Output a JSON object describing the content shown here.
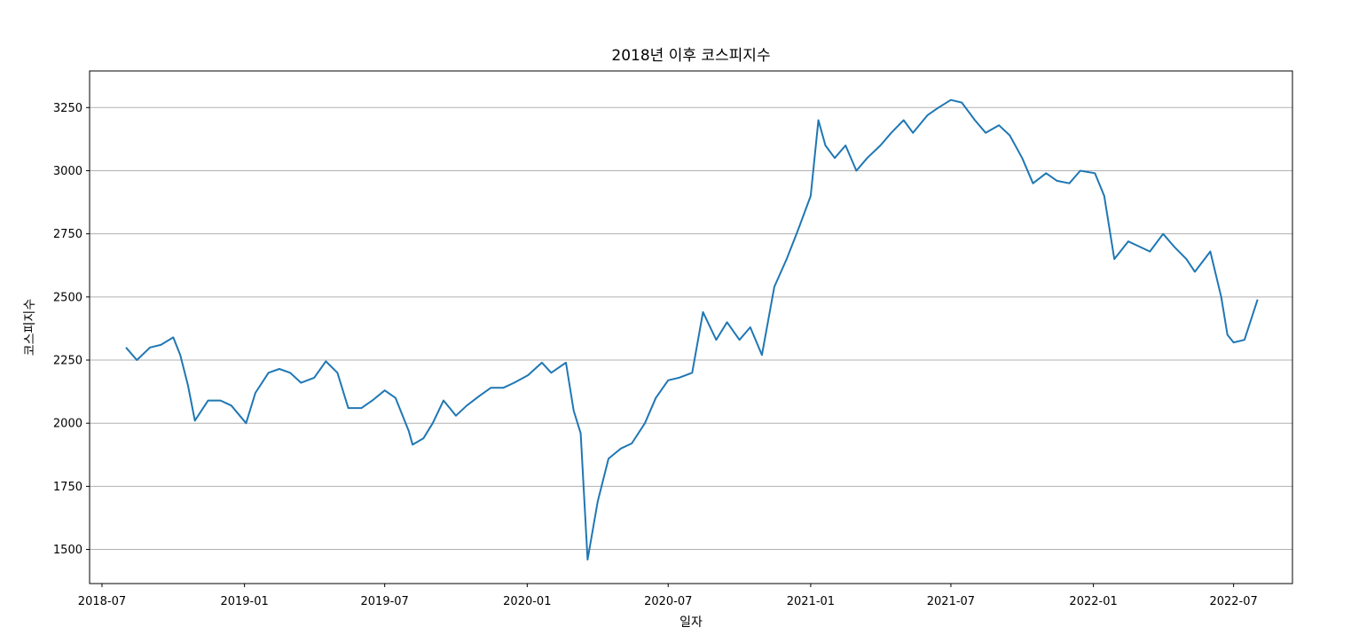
{
  "chart_data": {
    "type": "line",
    "title": "2018년 이후 코스피지수",
    "xlabel": "일자",
    "ylabel": "코스피지수",
    "x_axis_type": "date",
    "xlim": [
      "2018-06-15",
      "2022-09-15"
    ],
    "ylim": [
      1365,
      3395
    ],
    "grid": "y",
    "legend": "none",
    "line_color": "#1f77b4",
    "x_ticks": [
      "2018-07",
      "2019-01",
      "2019-07",
      "2020-01",
      "2020-07",
      "2021-01",
      "2021-07",
      "2022-01",
      "2022-07"
    ],
    "y_ticks": [
      1500,
      1750,
      2000,
      2250,
      2500,
      2750,
      3000,
      3250
    ],
    "series": [
      {
        "x": [
          "2018-08-01",
          "2018-08-15",
          "2018-09-01",
          "2018-09-15",
          "2018-10-01",
          "2018-10-10",
          "2018-10-20",
          "2018-10-29",
          "2018-11-15",
          "2018-12-01",
          "2018-12-15",
          "2019-01-03",
          "2019-01-15",
          "2019-02-01",
          "2019-02-15",
          "2019-03-01",
          "2019-03-15",
          "2019-04-01",
          "2019-04-16",
          "2019-05-01",
          "2019-05-15",
          "2019-06-01",
          "2019-06-15",
          "2019-07-01",
          "2019-07-15",
          "2019-08-01",
          "2019-08-06",
          "2019-08-20",
          "2019-09-01",
          "2019-09-15",
          "2019-10-01",
          "2019-10-15",
          "2019-11-01",
          "2019-11-15",
          "2019-12-01",
          "2019-12-15",
          "2020-01-02",
          "2020-01-20",
          "2020-02-01",
          "2020-02-20",
          "2020-03-01",
          "2020-03-10",
          "2020-03-19",
          "2020-04-01",
          "2020-04-15",
          "2020-05-01",
          "2020-05-15",
          "2020-06-01",
          "2020-06-15",
          "2020-07-01",
          "2020-07-15",
          "2020-08-01",
          "2020-08-15",
          "2020-09-01",
          "2020-09-15",
          "2020-10-01",
          "2020-10-15",
          "2020-10-30",
          "2020-11-15",
          "2020-12-01",
          "2020-12-15",
          "2021-01-01",
          "2021-01-11",
          "2021-01-20",
          "2021-02-01",
          "2021-02-15",
          "2021-03-01",
          "2021-03-15",
          "2021-04-01",
          "2021-04-15",
          "2021-05-01",
          "2021-05-13",
          "2021-06-01",
          "2021-06-15",
          "2021-07-01",
          "2021-07-15",
          "2021-08-01",
          "2021-08-15",
          "2021-09-01",
          "2021-09-15",
          "2021-10-01",
          "2021-10-15",
          "2021-11-01",
          "2021-11-15",
          "2021-12-01",
          "2021-12-15",
          "2022-01-03",
          "2022-01-15",
          "2022-01-28",
          "2022-02-15",
          "2022-03-01",
          "2022-03-15",
          "2022-04-01",
          "2022-04-15",
          "2022-05-01",
          "2022-05-12",
          "2022-06-01",
          "2022-06-15",
          "2022-06-23",
          "2022-07-01",
          "2022-07-15",
          "2022-08-01"
        ],
        "y": [
          2300,
          2250,
          2300,
          2310,
          2340,
          2270,
          2150,
          2010,
          2090,
          2090,
          2070,
          2000,
          2120,
          2200,
          2215,
          2200,
          2160,
          2180,
          2245,
          2200,
          2060,
          2060,
          2090,
          2130,
          2100,
          1970,
          1915,
          1940,
          2000,
          2090,
          2030,
          2070,
          2110,
          2140,
          2140,
          2160,
          2190,
          2240,
          2200,
          2240,
          2050,
          1960,
          1460,
          1690,
          1860,
          1900,
          1920,
          2000,
          2100,
          2170,
          2180,
          2200,
          2440,
          2330,
          2400,
          2330,
          2380,
          2270,
          2540,
          2650,
          2760,
          2900,
          3200,
          3100,
          3050,
          3100,
          3000,
          3050,
          3100,
          3150,
          3200,
          3150,
          3220,
          3250,
          3280,
          3270,
          3200,
          3150,
          3180,
          3140,
          3050,
          2950,
          2990,
          2960,
          2950,
          3000,
          2990,
          2900,
          2650,
          2720,
          2700,
          2680,
          2750,
          2700,
          2650,
          2600,
          2680,
          2500,
          2350,
          2320,
          2330,
          2490
        ]
      }
    ]
  }
}
